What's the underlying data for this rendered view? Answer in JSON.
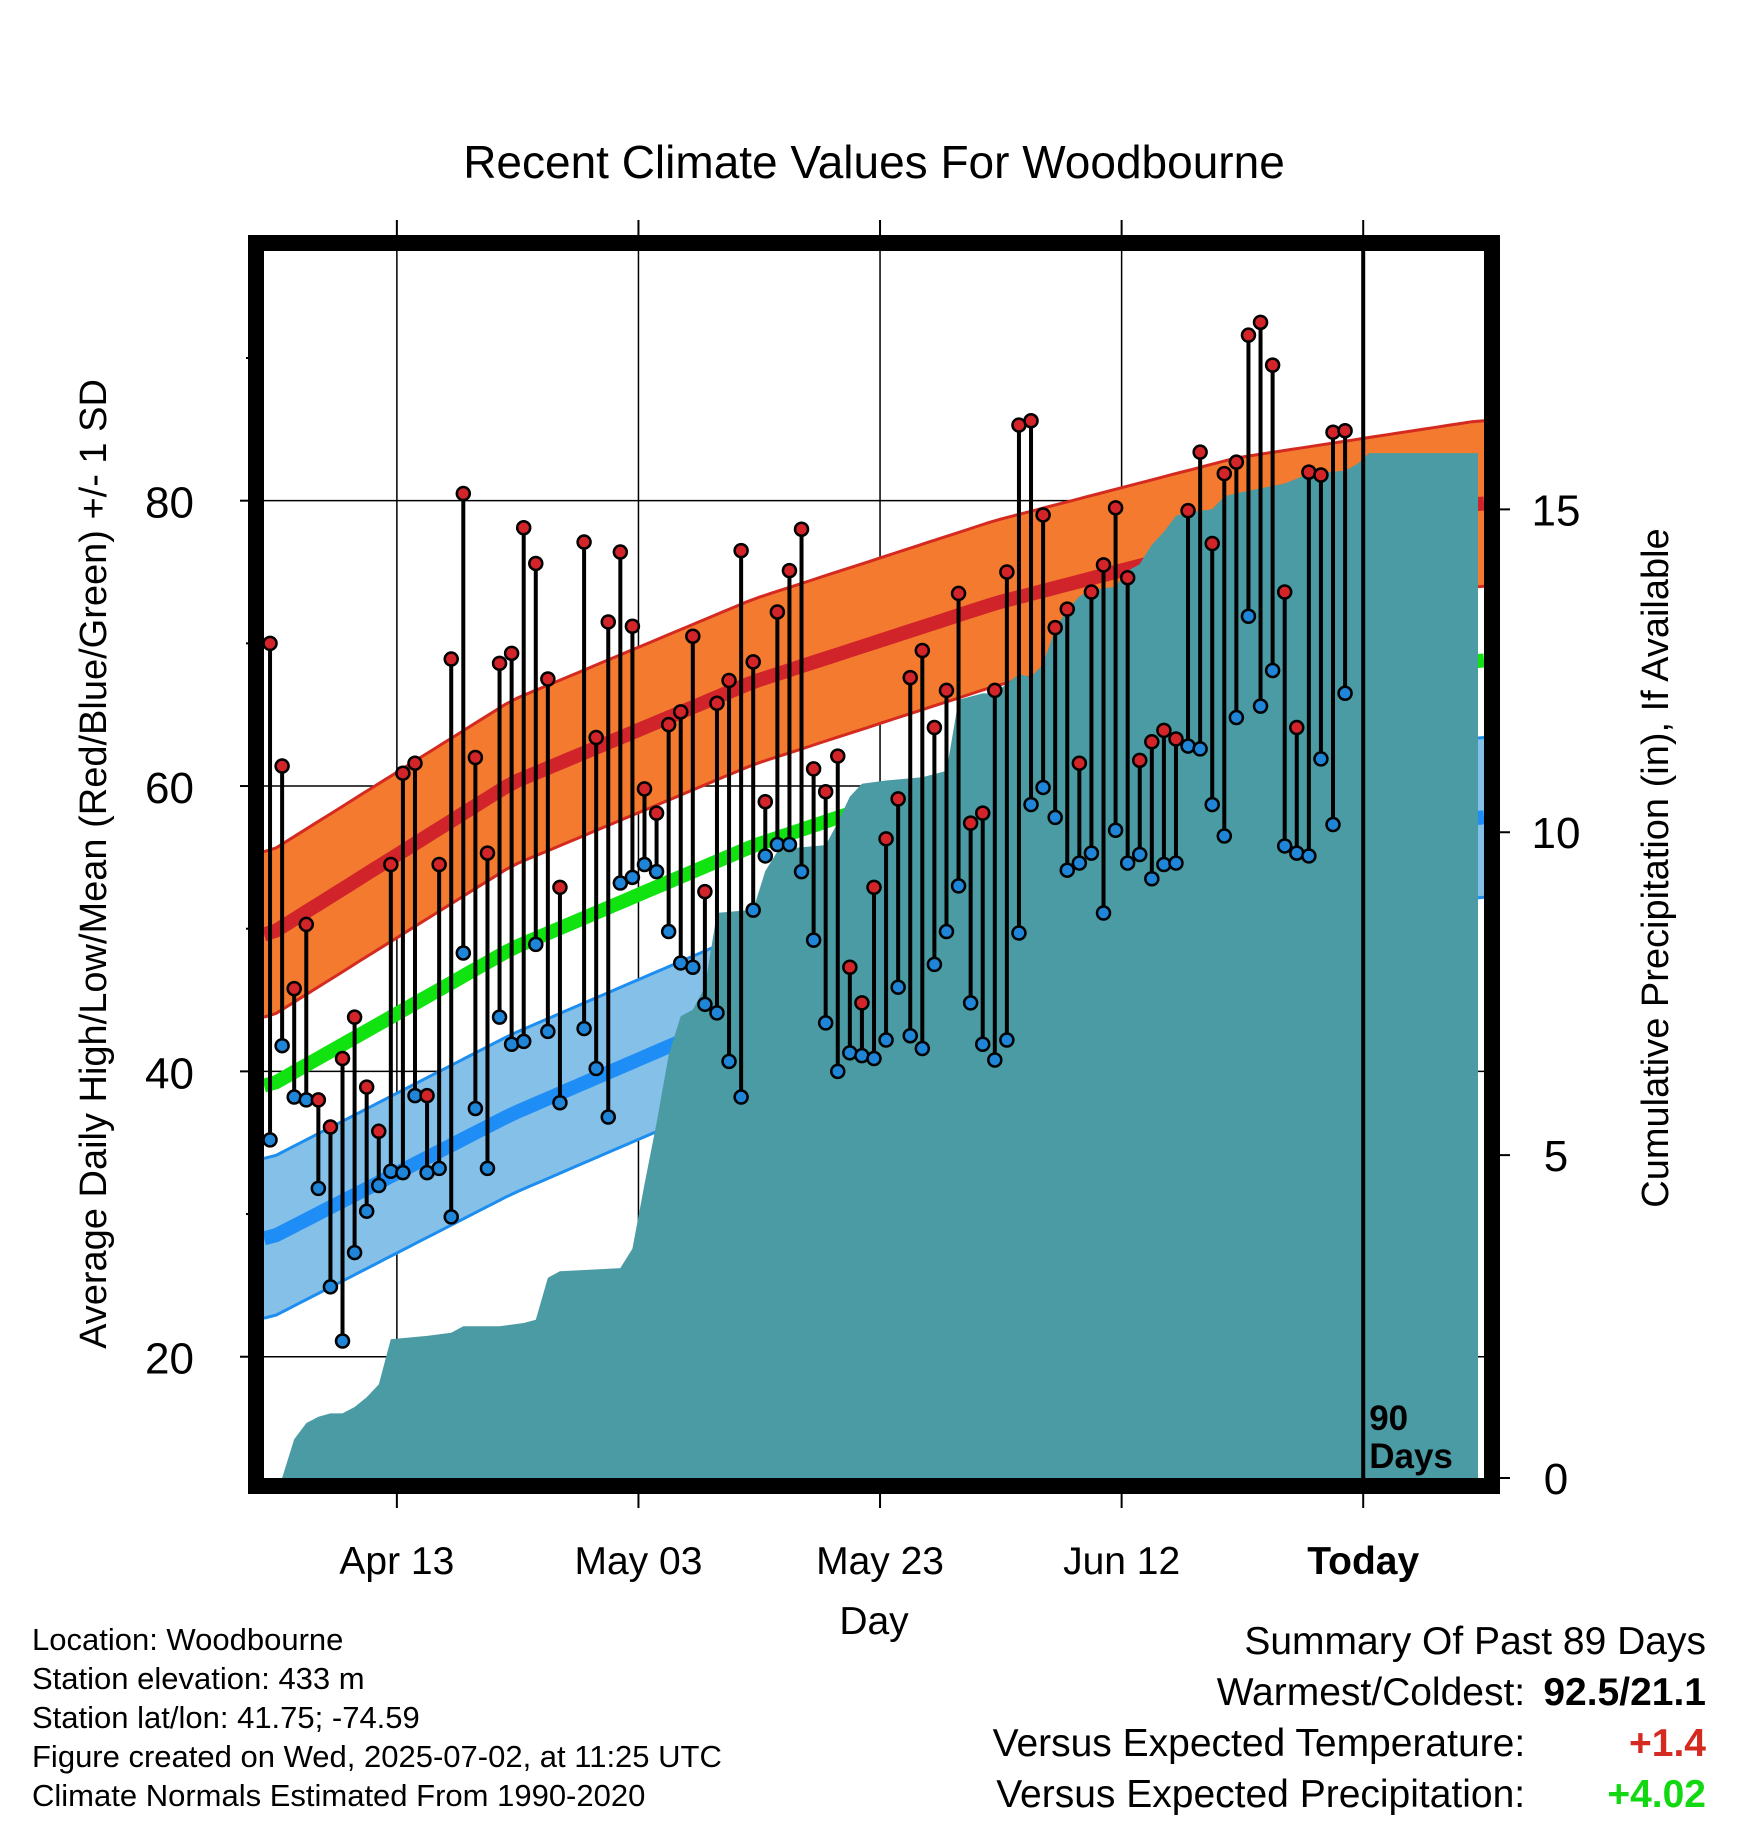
{
  "chart_data": {
    "type": "line",
    "title": "Recent Climate Values For Woodbourne",
    "xlabel": "Day",
    "ylabel": "Average Daily High/Low/Mean (Red/Blue/Green) +/- 1 SD",
    "y2label": "Cumulative Precipitation (in), If Available",
    "ylim": [
      11.5,
      97.5
    ],
    "y2lim": [
      0,
      19
    ],
    "yticks": [
      20,
      40,
      60,
      80
    ],
    "y2ticks": [
      0,
      5,
      10,
      15
    ],
    "days_shown": [
      1,
      101
    ],
    "xticks": [
      {
        "day": 11.5,
        "label": "Apr 13"
      },
      {
        "day": 31.5,
        "label": "May 03"
      },
      {
        "day": 51.5,
        "label": "May 23"
      },
      {
        "day": 71.5,
        "label": "Jun 12"
      },
      {
        "day": 91.5,
        "label": "Today"
      }
    ],
    "grid": true,
    "today_day": 91.5,
    "today_label": [
      "90",
      "Days"
    ],
    "colors": {
      "high_band": "#f47a30",
      "high_band_edge": "#d42a20",
      "high_mean": "#d1232a",
      "low_band": "#84c0e8",
      "low_band_edge": "#1d8ef0",
      "low_mean": "#1e8ef6",
      "normal_mean": "#11e311",
      "precip": "#4a9ba4",
      "high_dot": "#d3242a",
      "low_dot": "#1f85d8"
    },
    "normals": {
      "high_mean": [
        [
          1,
          49.6
        ],
        [
          21,
          60.2
        ],
        [
          41,
          67.3
        ],
        [
          61,
          72.8
        ],
        [
          81,
          77.2
        ],
        [
          101,
          79.8
        ]
      ],
      "high_sd": 5.8,
      "low_mean": [
        [
          1,
          28.3
        ],
        [
          21,
          37.0
        ],
        [
          41,
          44.3
        ],
        [
          61,
          50.2
        ],
        [
          81,
          54.8
        ],
        [
          101,
          57.8
        ]
      ],
      "low_sd": 5.6,
      "normal_mean": [
        [
          1,
          39.0
        ],
        [
          21,
          48.6
        ],
        [
          41,
          55.8
        ],
        [
          61,
          61.5
        ],
        [
          81,
          66.0
        ],
        [
          101,
          68.8
        ]
      ]
    },
    "daily": [
      [
        70.0,
        35.2
      ],
      [
        61.4,
        41.8
      ],
      [
        45.8,
        38.2
      ],
      [
        50.3,
        38.0
      ],
      [
        38.0,
        31.8
      ],
      [
        36.1,
        24.9
      ],
      [
        40.9,
        21.1
      ],
      [
        43.8,
        27.3
      ],
      [
        38.9,
        30.2
      ],
      [
        35.8,
        32.0
      ],
      [
        54.5,
        33.0
      ],
      [
        60.9,
        32.9
      ],
      [
        61.6,
        38.3
      ],
      [
        38.3,
        32.9
      ],
      [
        54.5,
        33.2
      ],
      [
        68.9,
        29.8
      ],
      [
        80.5,
        48.3
      ],
      [
        62.0,
        37.4
      ],
      [
        55.3,
        33.2
      ],
      [
        68.6,
        43.8
      ],
      [
        69.3,
        41.9
      ],
      [
        78.1,
        42.1
      ],
      [
        75.6,
        48.9
      ],
      [
        67.5,
        42.8
      ],
      [
        52.9,
        37.8
      ],
      null,
      [
        77.1,
        43.0
      ],
      [
        63.4,
        40.2
      ],
      [
        71.5,
        36.8
      ],
      [
        76.4,
        53.2
      ],
      [
        71.2,
        53.6
      ],
      [
        59.8,
        54.5
      ],
      [
        58.1,
        54.0
      ],
      [
        64.3,
        49.8
      ],
      [
        65.2,
        47.6
      ],
      [
        70.5,
        47.3
      ],
      [
        52.6,
        44.7
      ],
      [
        65.8,
        44.1
      ],
      [
        67.4,
        40.7
      ],
      [
        76.5,
        38.2
      ],
      [
        68.7,
        51.3
      ],
      [
        58.9,
        55.1
      ],
      [
        72.2,
        55.9
      ],
      [
        75.1,
        55.9
      ],
      [
        78.0,
        54.0
      ],
      [
        61.2,
        49.2
      ],
      [
        59.6,
        43.4
      ],
      [
        62.1,
        40.0
      ],
      [
        47.3,
        41.3
      ],
      [
        44.8,
        41.1
      ],
      [
        52.9,
        40.9
      ],
      [
        56.3,
        42.2
      ],
      [
        59.1,
        45.9
      ],
      [
        67.6,
        42.5
      ],
      [
        69.5,
        41.6
      ],
      [
        64.1,
        47.5
      ],
      [
        66.7,
        49.8
      ],
      [
        73.5,
        53.0
      ],
      [
        57.4,
        44.8
      ],
      [
        58.1,
        41.9
      ],
      [
        66.7,
        40.8
      ],
      [
        75.0,
        42.2
      ],
      [
        85.3,
        49.7
      ],
      [
        85.6,
        58.7
      ],
      [
        79.0,
        59.9
      ],
      [
        71.1,
        57.8
      ],
      [
        72.4,
        54.1
      ],
      [
        61.6,
        54.6
      ],
      [
        73.6,
        55.3
      ],
      [
        75.5,
        51.1
      ],
      [
        79.5,
        56.9
      ],
      [
        74.6,
        54.6
      ],
      [
        61.8,
        55.2
      ],
      [
        63.1,
        53.5
      ],
      [
        63.9,
        54.5
      ],
      [
        63.3,
        54.6
      ],
      [
        79.3,
        62.8
      ],
      [
        83.4,
        62.6
      ],
      [
        77.0,
        58.7
      ],
      [
        81.9,
        56.5
      ],
      [
        82.7,
        64.8
      ],
      [
        91.6,
        71.9
      ],
      [
        92.5,
        65.6
      ],
      [
        89.5,
        68.1
      ],
      [
        73.6,
        55.8
      ],
      [
        64.1,
        55.3
      ],
      [
        82.0,
        55.1
      ],
      [
        81.8,
        61.9
      ],
      [
        84.8,
        57.3
      ],
      [
        84.9,
        66.5
      ]
    ],
    "precip_cumulative": [
      [
        1,
        0.0
      ],
      [
        2,
        0.0
      ],
      [
        3,
        0.6
      ],
      [
        4,
        0.85
      ],
      [
        5,
        0.95
      ],
      [
        6,
        1.0
      ],
      [
        7,
        1.0
      ],
      [
        8,
        1.1
      ],
      [
        9,
        1.25
      ],
      [
        10,
        1.45
      ],
      [
        11,
        2.15
      ],
      [
        14,
        2.2
      ],
      [
        16,
        2.25
      ],
      [
        17,
        2.35
      ],
      [
        20,
        2.35
      ],
      [
        22,
        2.4
      ],
      [
        23,
        2.45
      ],
      [
        24,
        3.1
      ],
      [
        25,
        3.2
      ],
      [
        30,
        3.25
      ],
      [
        31,
        3.55
      ],
      [
        32,
        4.55
      ],
      [
        33,
        5.5
      ],
      [
        34,
        6.55
      ],
      [
        35,
        7.15
      ],
      [
        36,
        7.25
      ],
      [
        37,
        7.6
      ],
      [
        38,
        8.75
      ],
      [
        41,
        8.8
      ],
      [
        42,
        9.4
      ],
      [
        43,
        9.7
      ],
      [
        44,
        9.75
      ],
      [
        47,
        9.8
      ],
      [
        48,
        10.15
      ],
      [
        49,
        10.55
      ],
      [
        50,
        10.75
      ],
      [
        52,
        10.8
      ],
      [
        55,
        10.85
      ],
      [
        57,
        10.95
      ],
      [
        58,
        12.05
      ],
      [
        60,
        12.15
      ],
      [
        61,
        12.15
      ],
      [
        63,
        12.45
      ],
      [
        64,
        12.4
      ],
      [
        65,
        12.6
      ],
      [
        66,
        13.15
      ],
      [
        67,
        13.45
      ],
      [
        68,
        13.65
      ],
      [
        69,
        13.75
      ],
      [
        71,
        13.8
      ],
      [
        72,
        14.05
      ],
      [
        73,
        14.15
      ],
      [
        74,
        14.45
      ],
      [
        75,
        14.65
      ],
      [
        76,
        14.9
      ],
      [
        77,
        14.95
      ],
      [
        79,
        15.0
      ],
      [
        80,
        15.2
      ],
      [
        81,
        15.25
      ],
      [
        85,
        15.4
      ],
      [
        87,
        15.55
      ],
      [
        90,
        15.6
      ],
      [
        91,
        15.7
      ],
      [
        92,
        15.87
      ],
      [
        101,
        15.87
      ]
    ]
  },
  "info": {
    "location": "Location: Woodbourne",
    "elevation": "Station elevation: 433 m",
    "latlon": "Station lat/lon: 41.75; -74.59",
    "created": "Figure created on Wed, 2025-07-02, at 11:25 UTC",
    "normals": "Climate Normals Estimated From 1990-2020"
  },
  "summary": {
    "title": "Summary Of Past 89 Days",
    "warmest_coldest_label": "Warmest/Coldest:",
    "warmest_coldest_value": "92.5/21.1",
    "temp_label": "Versus Expected Temperature:",
    "temp_value": "+1.4",
    "temp_color": "#d42a20",
    "precip_label": "Versus Expected Precipitation:",
    "precip_value": "+4.02",
    "precip_color": "#11d811"
  }
}
